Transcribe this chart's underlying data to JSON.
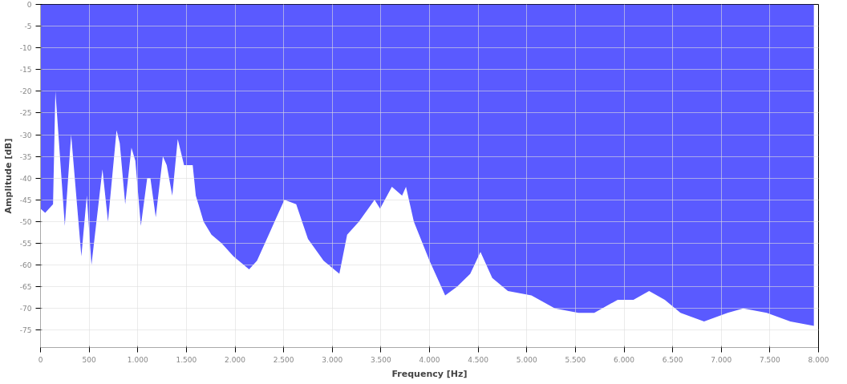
{
  "chart_data": {
    "type": "area",
    "xlabel": "Frequency [Hz]",
    "ylabel": "Amplitude [dB]",
    "x": [
      0,
      48,
      129,
      153,
      250,
      315,
      420,
      476,
      524,
      637,
      694,
      782,
      815,
      871,
      935,
      975,
      1032,
      1097,
      1130,
      1185,
      1258,
      1298,
      1355,
      1411,
      1476,
      1565,
      1597,
      1677,
      1758,
      1863,
      1984,
      2145,
      2226,
      2347,
      2427,
      2508,
      2629,
      2750,
      2911,
      3073,
      3153,
      3274,
      3435,
      3492,
      3613,
      3718,
      3758,
      3839,
      4000,
      4161,
      4282,
      4419,
      4524,
      4645,
      4806,
      5048,
      5290,
      5532,
      5694,
      5935,
      6097,
      6258,
      6419,
      6581,
      6823,
      7065,
      7226,
      7468,
      7710,
      7952
    ],
    "series": [
      {
        "color": "#5a5aff",
        "values": [
          -47,
          -48,
          -46,
          -20,
          -51,
          -30,
          -58,
          -44,
          -60,
          -38,
          -50,
          -29,
          -32,
          -46,
          -33,
          -36,
          -51,
          -40,
          -40,
          -49,
          -35,
          -37,
          -44,
          -31,
          -37,
          -37,
          -44,
          -50,
          -53,
          -55,
          -58,
          -61,
          -59,
          -53,
          -49,
          -45,
          -46,
          -54,
          -59,
          -62,
          -53,
          -50,
          -45,
          -47,
          -42,
          -44,
          -42,
          -50,
          -59,
          -67,
          -65,
          -62,
          -57,
          -63,
          -66,
          -67,
          -70,
          -71,
          -71,
          -68,
          -68,
          -66,
          -68,
          -71,
          -73,
          -71,
          -70,
          -71,
          -73,
          -74
        ]
      }
    ],
    "xlim": [
      0,
      8000
    ],
    "ylim": [
      -79,
      0
    ],
    "xticks": [
      0,
      {
        "value": 500,
        "label": "500"
      },
      {
        "value": 1000,
        "label": "1.000"
      },
      {
        "value": 1500,
        "label": "1.500"
      },
      {
        "value": 2000,
        "label": "2.000"
      },
      {
        "value": 2500,
        "label": "2.500"
      },
      {
        "value": 3000,
        "label": "3.000"
      },
      {
        "value": 3500,
        "label": "3.500"
      },
      {
        "value": 4000,
        "label": "4.000"
      },
      {
        "value": 4500,
        "label": "4.500"
      },
      {
        "value": 5000,
        "label": "5.000"
      },
      {
        "value": 5500,
        "label": "5.500"
      },
      {
        "value": 6000,
        "label": "6.000"
      },
      {
        "value": 6500,
        "label": "6.500"
      },
      {
        "value": 7000,
        "label": "7.000"
      },
      {
        "value": 7500,
        "label": "7.500"
      },
      {
        "value": 8000,
        "label": "8.000"
      }
    ],
    "yticks": [
      0,
      -5,
      -10,
      -15,
      -20,
      -25,
      -30,
      -35,
      -40,
      -45,
      -50,
      -55,
      -60,
      -65,
      -70,
      -75
    ],
    "grid": true
  }
}
